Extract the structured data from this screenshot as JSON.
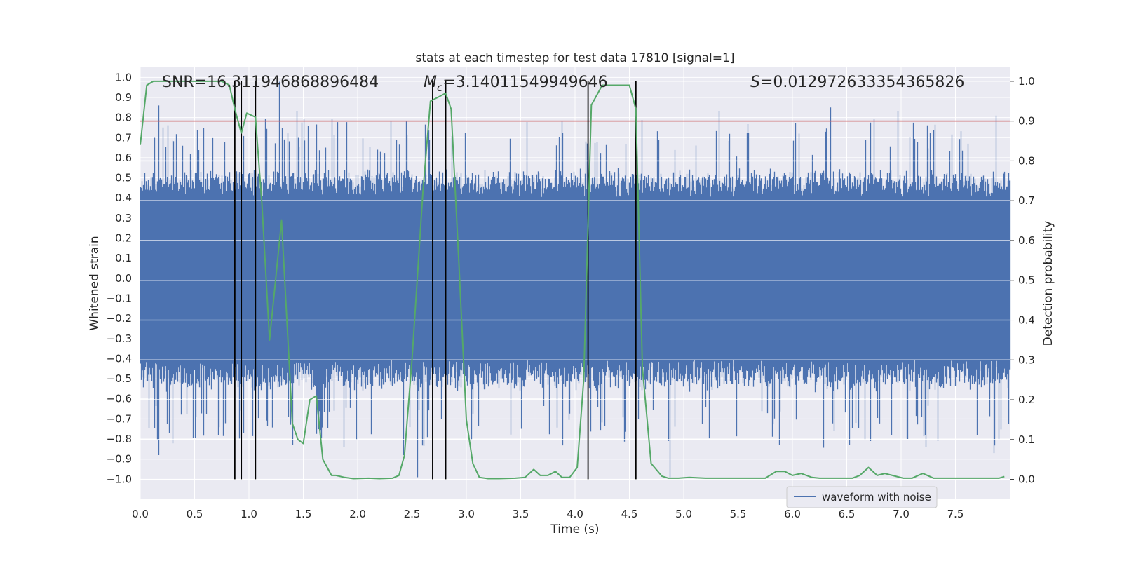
{
  "chart_data": {
    "type": "line",
    "title": "stats at each timestep for test data 17810 [signal=1]",
    "xlabel": "Time (s)",
    "ylabel": "Whitened strain",
    "y2label": "Detection probability",
    "xlim": [
      0.0,
      8.0
    ],
    "ylim": [
      -1.1,
      1.05
    ],
    "y2lim": [
      -0.05,
      1.035
    ],
    "grid": true,
    "legend_position": "bottom-right",
    "colors": {
      "background": "#eaeaf2",
      "grid": "#ffffff",
      "waveform": "#4c72b0",
      "probability": "#55a868",
      "threshold": "#c44e52",
      "markers": "#000000",
      "text": "#262626"
    },
    "x_ticks": [
      0.0,
      0.5,
      1.0,
      1.5,
      2.0,
      2.5,
      3.0,
      3.5,
      4.0,
      4.5,
      5.0,
      5.5,
      6.0,
      6.5,
      7.0,
      7.5
    ],
    "x_tick_labels": [
      "0.0",
      "0.5",
      "1.0",
      "1.5",
      "2.0",
      "2.5",
      "3.0",
      "3.5",
      "4.0",
      "4.5",
      "5.0",
      "5.5",
      "6.0",
      "6.5",
      "7.0",
      "7.5"
    ],
    "y_ticks": [
      1.0,
      0.9,
      0.8,
      0.7,
      0.6,
      0.5,
      0.4,
      0.3,
      0.2,
      0.1,
      0.0,
      -0.1,
      -0.2,
      -0.3,
      -0.4,
      -0.5,
      -0.6,
      -0.7,
      -0.8,
      -0.9,
      -1.0
    ],
    "y_tick_labels": [
      "1.0",
      "0.9",
      "0.8",
      "0.7",
      "0.6",
      "0.5",
      "0.4",
      "0.3",
      "0.2",
      "0.1",
      "0.0",
      "−0.1",
      "−0.2",
      "−0.3",
      "−0.4",
      "−0.5",
      "−0.6",
      "−0.7",
      "−0.8",
      "−0.9",
      "−1.0"
    ],
    "y2_ticks": [
      1.0,
      0.9,
      0.8,
      0.7,
      0.6,
      0.5,
      0.4,
      0.3,
      0.2,
      0.1,
      0.0
    ],
    "y2_tick_labels": [
      "1.0",
      "0.9",
      "0.8",
      "0.7",
      "0.6",
      "0.5",
      "0.4",
      "0.3",
      "0.2",
      "0.1",
      "0.0"
    ],
    "annotations": {
      "snr": "SNR=16.311946868896484",
      "mc_symbol": "M",
      "mc_subscript": "c",
      "mc_value": "=3.14011549949646",
      "s_symbol": "S",
      "s_value": "=0.012972633354365826"
    },
    "threshold_probability": 0.9,
    "marker_lines_x": [
      0.87,
      0.93,
      1.06,
      2.69,
      2.81,
      4.12,
      4.56
    ],
    "marker_lines_yrange": [
      -1.0,
      0.98
    ],
    "waveform": {
      "name": "waveform with noise",
      "duration_s": 8.0,
      "peak_max": [
        {
          "t": 0.17,
          "v": 0.86
        },
        {
          "t": 1.28,
          "v": 0.98
        },
        {
          "t": 1.44,
          "v": 0.83
        },
        {
          "t": 3.88,
          "v": 0.78
        },
        {
          "t": 5.32,
          "v": 0.83
        },
        {
          "t": 6.35,
          "v": 0.85
        },
        {
          "t": 6.97,
          "v": 0.83
        },
        {
          "t": 7.87,
          "v": 0.81
        },
        {
          "t": 0.58,
          "v": 0.75
        }
      ],
      "peak_min": [
        {
          "t": 0.17,
          "v": -0.88
        },
        {
          "t": 1.4,
          "v": -0.83
        },
        {
          "t": 1.65,
          "v": -0.77
        },
        {
          "t": 2.42,
          "v": -0.88
        },
        {
          "t": 2.55,
          "v": -0.99
        },
        {
          "t": 4.87,
          "v": -0.99
        },
        {
          "t": 5.88,
          "v": -0.83
        },
        {
          "t": 6.91,
          "v": -0.78
        },
        {
          "t": 7.85,
          "v": -0.87
        },
        {
          "t": 7.06,
          "v": -0.8
        }
      ]
    },
    "probability_series": {
      "name": "detection probability",
      "x": [
        0.0,
        0.06,
        0.12,
        0.2,
        0.3,
        0.45,
        0.6,
        0.75,
        0.82,
        0.87,
        0.93,
        0.98,
        1.06,
        1.12,
        1.19,
        1.3,
        1.4,
        1.45,
        1.5,
        1.56,
        1.62,
        1.68,
        1.76,
        1.8,
        1.88,
        1.96,
        2.1,
        2.2,
        2.32,
        2.38,
        2.43,
        2.5,
        2.6,
        2.67,
        2.74,
        2.81,
        2.86,
        2.93,
        3.0,
        3.06,
        3.12,
        3.2,
        3.3,
        3.45,
        3.54,
        3.62,
        3.68,
        3.75,
        3.82,
        3.88,
        3.95,
        4.02,
        4.08,
        4.15,
        4.25,
        4.32,
        4.4,
        4.5,
        4.56,
        4.62,
        4.7,
        4.8,
        4.86,
        4.95,
        5.05,
        5.2,
        5.3,
        5.45,
        5.6,
        5.75,
        5.85,
        5.93,
        6.0,
        6.08,
        6.18,
        6.25,
        6.35,
        6.45,
        6.55,
        6.62,
        6.7,
        6.78,
        6.85,
        6.95,
        7.02,
        7.1,
        7.2,
        7.3,
        7.45,
        7.6,
        7.75,
        7.9,
        7.95
      ],
      "y": [
        0.84,
        0.99,
        1.0,
        1.0,
        1.0,
        1.0,
        1.0,
        1.0,
        0.99,
        0.93,
        0.87,
        0.92,
        0.91,
        0.69,
        0.35,
        0.65,
        0.14,
        0.1,
        0.09,
        0.2,
        0.21,
        0.05,
        0.01,
        0.01,
        0.005,
        0.002,
        0.003,
        0.002,
        0.003,
        0.01,
        0.06,
        0.3,
        0.72,
        0.95,
        0.96,
        0.97,
        0.93,
        0.55,
        0.15,
        0.04,
        0.005,
        0.002,
        0.002,
        0.003,
        0.005,
        0.025,
        0.01,
        0.01,
        0.02,
        0.005,
        0.005,
        0.03,
        0.25,
        0.94,
        0.99,
        0.99,
        0.99,
        0.99,
        0.93,
        0.28,
        0.04,
        0.008,
        0.003,
        0.003,
        0.005,
        0.003,
        0.003,
        0.003,
        0.003,
        0.003,
        0.02,
        0.02,
        0.01,
        0.015,
        0.005,
        0.003,
        0.003,
        0.003,
        0.003,
        0.01,
        0.03,
        0.01,
        0.015,
        0.008,
        0.003,
        0.003,
        0.015,
        0.003,
        0.003,
        0.003,
        0.003,
        0.003,
        0.007
      ]
    }
  }
}
